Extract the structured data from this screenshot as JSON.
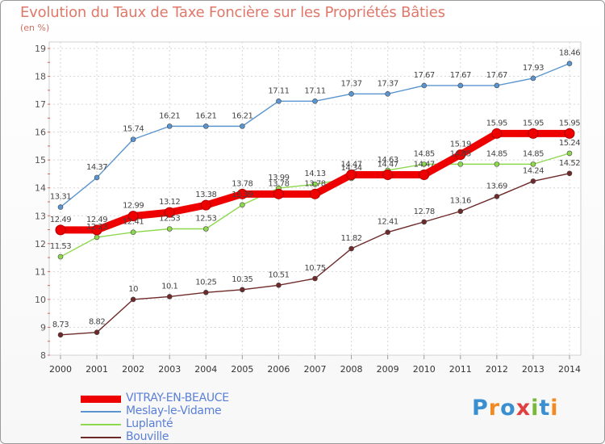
{
  "title": "Evolution du Taux de Taxe Foncière sur les Propriétés Bâties",
  "unit_label": "(en %)",
  "logo": {
    "letters": [
      "P",
      "r",
      "o",
      "x",
      "i",
      "t",
      "i"
    ],
    "colors": [
      "#3a8fd0",
      "#f08a24",
      "#3a8fd0",
      "#e04040",
      "#7ab83a",
      "#3a8fd0",
      "#f08a24"
    ]
  },
  "chart_data": {
    "type": "line",
    "x": [
      2000,
      2001,
      2002,
      2003,
      2004,
      2005,
      2006,
      2007,
      2008,
      2009,
      2010,
      2011,
      2012,
      2013,
      2014
    ],
    "ylim": [
      8,
      19
    ],
    "yticks": [
      8,
      9,
      10,
      11,
      12,
      13,
      14,
      15,
      16,
      17,
      18,
      19
    ],
    "grid": true,
    "legend_position": "bottom-left",
    "series": [
      {
        "name": "VITRAY-EN-BEAUCE",
        "color": "#ee0000",
        "values": [
          12.49,
          12.49,
          12.99,
          13.12,
          13.38,
          13.78,
          13.78,
          13.78,
          14.47,
          14.47,
          14.47,
          15.19,
          15.95,
          15.95,
          15.95
        ],
        "labels": [
          "12.49",
          "12.49",
          "12.99",
          "13.12",
          "13.38",
          "13.78",
          "13.78",
          "13.78",
          "14.47",
          "14.47",
          "14.47",
          "15.19",
          "15.95",
          "15.95",
          "15.95"
        ]
      },
      {
        "name": "Meslay-le-Vidame",
        "color": "#5a95d0",
        "values": [
          13.31,
          14.37,
          15.74,
          16.21,
          16.21,
          16.21,
          17.11,
          17.11,
          17.37,
          17.37,
          17.67,
          17.67,
          17.67,
          17.93,
          18.46
        ],
        "labels": [
          "13.31",
          "14.37",
          "15.74",
          "16.21",
          "16.21",
          "16.21",
          "17.11",
          "17.11",
          "17.37",
          "17.37",
          "17.67",
          "17.67",
          "17.67",
          "17.93",
          "18.46"
        ]
      },
      {
        "name": "Luplanté",
        "color": "#8ed84e",
        "values": [
          11.53,
          12.23,
          12.41,
          12.53,
          12.53,
          13.39,
          13.99,
          14.13,
          14.34,
          14.63,
          14.85,
          14.85,
          14.85,
          14.85,
          15.24
        ],
        "labels": [
          "11.53",
          "12.23",
          "12.41",
          "12.53",
          "12.53",
          "13.39",
          "13.99",
          "14.13",
          "14.34",
          "14.63",
          "14.85",
          "14.85",
          "14.85",
          "14.85",
          "15.24"
        ]
      },
      {
        "name": "Bouville",
        "color": "#6e2a2a",
        "values": [
          8.73,
          8.82,
          10,
          10.1,
          10.25,
          10.35,
          10.51,
          10.75,
          11.82,
          12.41,
          12.78,
          13.16,
          13.69,
          14.24,
          14.52
        ],
        "labels": [
          "8.73",
          "8.82",
          "10",
          "10.1",
          "10.25",
          "10.35",
          "10.51",
          "10.75",
          "11.82",
          "12.41",
          "12.78",
          "13.16",
          "13.69",
          "14.24",
          "14.52"
        ]
      }
    ]
  }
}
